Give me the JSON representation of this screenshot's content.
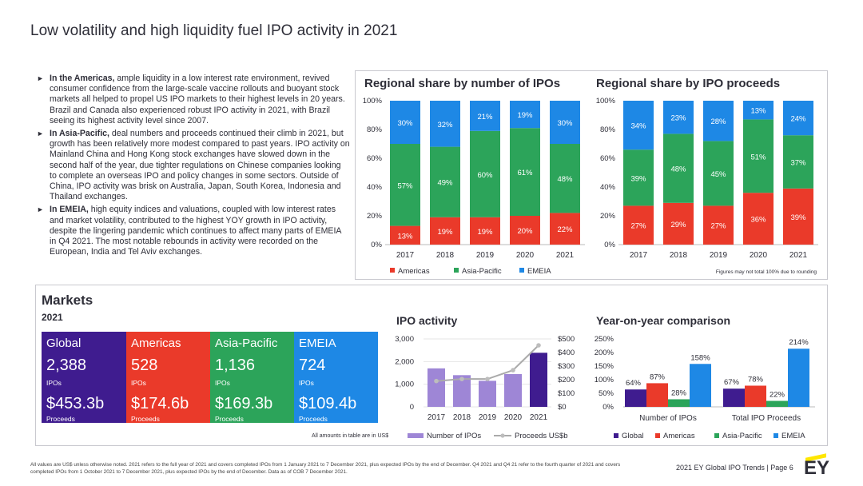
{
  "title": "Low volatility and high liquidity fuel IPO activity in 2021",
  "bullets": [
    {
      "lead": "In the Americas,",
      "text": " ample liquidity in a low interest rate environment, revived consumer confidence from the large-scale vaccine rollouts and buoyant stock markets all helped to propel US IPO markets to their highest levels in 20 years. Brazil and Canada also experienced robust IPO activity in 2021, with Brazil seeing its highest activity level since 2007."
    },
    {
      "lead": "In Asia-Pacific,",
      "text": " deal numbers and proceeds continued their climb in 2021, but growth has been relatively more modest compared to past years. IPO activity on Mainland China and Hong Kong stock exchanges have slowed down in the second half of the year, due tighter regulations on Chinese companies looking to complete an overseas IPO and policy changes in some sectors. Outside of China, IPO activity was brisk on Australia, Japan, South Korea, Indonesia and Thailand exchanges."
    },
    {
      "lead": "In EMEIA,",
      "text": " high equity indices and valuations, coupled with low interest rates and market volatility, contributed to the highest YOY growth in IPO activity, despite the lingering pandemic which continues to affect many parts of EMEIA in Q4 2021. The most notable rebounds in activity were recorded on the European, India and Tel Aviv exchanges."
    }
  ],
  "colors": {
    "americas": "#ea3a2a",
    "asia": "#2ca45a",
    "emeia": "#1e88e5",
    "global": "#3f1c8f",
    "bar_purple": "#9e86d6",
    "line_grey": "#aaaaaa"
  },
  "chart_data": [
    {
      "type": "bar",
      "title": "Regional share by number of IPOs",
      "categories": [
        "2017",
        "2018",
        "2019",
        "2020",
        "2021"
      ],
      "stacked": true,
      "ylim": [
        0,
        100
      ],
      "yticks": [
        "0%",
        "20%",
        "40%",
        "60%",
        "80%",
        "100%"
      ],
      "series": [
        {
          "name": "Americas",
          "values": [
            13,
            19,
            19,
            20,
            22
          ]
        },
        {
          "name": "Asia-Pacific",
          "values": [
            57,
            49,
            60,
            61,
            48
          ]
        },
        {
          "name": "EMEIA",
          "values": [
            30,
            32,
            21,
            19,
            30
          ]
        }
      ]
    },
    {
      "type": "bar",
      "title": "Regional share by IPO proceeds",
      "categories": [
        "2017",
        "2018",
        "2019",
        "2020",
        "2021"
      ],
      "stacked": true,
      "ylim": [
        0,
        100
      ],
      "yticks": [
        "0%",
        "20%",
        "40%",
        "60%",
        "80%",
        "100%"
      ],
      "series": [
        {
          "name": "Americas",
          "values": [
            27,
            29,
            27,
            36,
            39
          ]
        },
        {
          "name": "Asia-Pacific",
          "values": [
            39,
            48,
            45,
            51,
            37
          ]
        },
        {
          "name": "EMEIA",
          "values": [
            34,
            23,
            28,
            13,
            24
          ]
        }
      ]
    },
    {
      "type": "bar",
      "title": "IPO activity",
      "categories": [
        "2017",
        "2018",
        "2019",
        "2020",
        "2021"
      ],
      "series": [
        {
          "name": "Number of IPOs",
          "values": [
            1700,
            1400,
            1150,
            1450,
            2388
          ]
        },
        {
          "name": "Proceeds US$b",
          "values": [
            190,
            205,
            205,
            270,
            453
          ]
        }
      ],
      "ylim_left": [
        0,
        3000
      ],
      "ylim_right": [
        0,
        500
      ],
      "yticks_left": [
        "0",
        "1,000",
        "2,000",
        "3,000"
      ],
      "yticks_right": [
        "$0",
        "$100",
        "$200",
        "$300",
        "$400",
        "$500"
      ]
    },
    {
      "type": "bar",
      "title": "Year-on-year comparison",
      "categories": [
        "Number of IPOs",
        "Total IPO Proceeds"
      ],
      "ylim": [
        0,
        250
      ],
      "yticks": [
        "0%",
        "50%",
        "100%",
        "150%",
        "200%",
        "250%"
      ],
      "series": [
        {
          "name": "Global",
          "values": [
            64,
            67
          ],
          "labels": [
            "64%",
            "67%"
          ]
        },
        {
          "name": "Americas",
          "values": [
            87,
            78
          ],
          "labels": [
            "87%",
            "78%"
          ]
        },
        {
          "name": "Asia-Pacific",
          "values": [
            28,
            22
          ],
          "labels": [
            "28%",
            "22%"
          ]
        },
        {
          "name": "EMEIA",
          "values": [
            158,
            214
          ],
          "labels": [
            "158%",
            "214%"
          ]
        }
      ]
    }
  ],
  "legend1": [
    "Americas",
    "Asia-Pacific",
    "EMEIA"
  ],
  "rounding_note": "Figures may not total 100% due to rounding",
  "markets": {
    "heading": "Markets",
    "year": "2021",
    "tiles": [
      {
        "name": "Global",
        "ipos": "2,388",
        "ipos_label": "IPOs",
        "proceeds": "$453.3b",
        "proceeds_label": "Proceeds"
      },
      {
        "name": "Americas",
        "ipos": "528",
        "ipos_label": "IPOs",
        "proceeds": "$174.6b",
        "proceeds_label": "Proceeds"
      },
      {
        "name": "Asia-Pacific",
        "ipos": "1,136",
        "ipos_label": "IPOs",
        "proceeds": "$169.3b",
        "proceeds_label": "Proceeds"
      },
      {
        "name": "EMEIA",
        "ipos": "724",
        "ipos_label": "IPOs",
        "proceeds": "$109.4b",
        "proceeds_label": "Proceeds"
      }
    ],
    "note": "All amounts in table are in US$"
  },
  "footer": "All values are US$ unless otherwise noted. 2021 refers to the full year of 2021 and covers completed IPOs from 1 January 2021 to 7 December 2021, plus expected IPOs by the end of December. Q4 2021 and Q4 21 refer to the fourth quarter of 2021 and covers completed IPOs from 1 October 2021 to 7 December 2021, plus expected IPOs by the end of December. Data as of COB 7 December 2021.",
  "page_info": "2021 EY Global IPO Trends | Page 6",
  "logo": "EY"
}
